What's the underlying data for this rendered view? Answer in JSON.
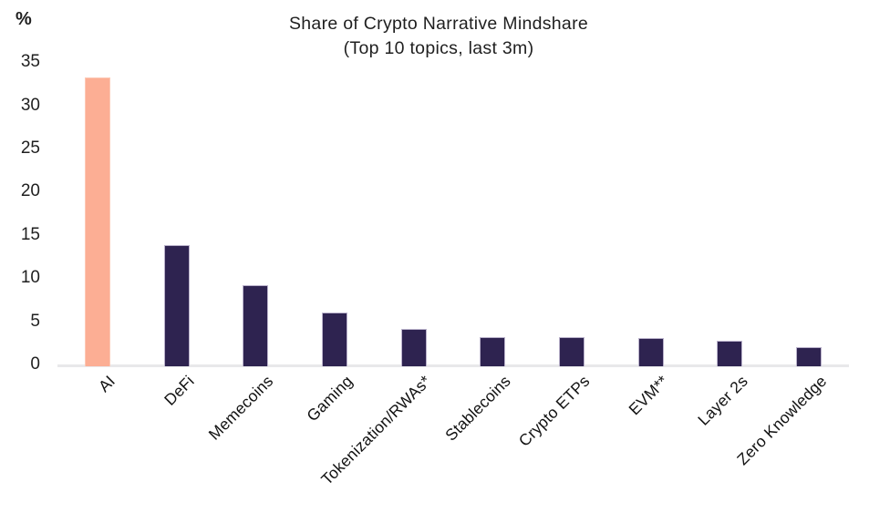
{
  "chart_data": {
    "type": "bar",
    "title": "Share of Crypto Narrative Mindshare",
    "subtitle": "(Top 10 topics, last 3m)",
    "y_axis_unit_label": "%",
    "categories": [
      "AI",
      "DeFi",
      "Memecoins",
      "Gaming",
      "Tokenization/RWAs*",
      "Stablecoins",
      "Crypto ETPs",
      "EVM**",
      "Layer 2s",
      "Zero Knowledge"
    ],
    "values": [
      33.2,
      13.9,
      9.3,
      6.2,
      4.3,
      3.4,
      3.3,
      3.2,
      2.9,
      2.2
    ],
    "ylim": [
      0,
      35
    ],
    "yticks": [
      0,
      5,
      10,
      15,
      20,
      25,
      30,
      35
    ],
    "grid": false,
    "legend_position": "none",
    "x_label_rotation_deg": 45,
    "highlight_category": "AI",
    "colors": {
      "highlight_bar": "#FCAE94",
      "highlight_bar_border": "#FDC9B6",
      "default_bar": "#2E2350",
      "default_bar_border": "#BAB2CB",
      "axis_line": "#E8E8EA",
      "text": "#1F1F1F",
      "background": "#FFFFFF"
    }
  }
}
